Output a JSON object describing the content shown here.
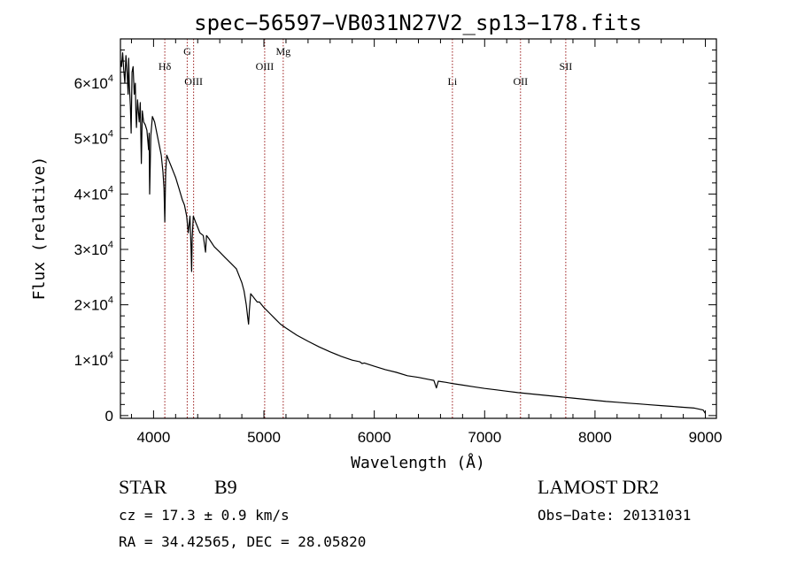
{
  "chart_data": {
    "type": "line",
    "title": "spec−56597−VB031N27V2_sp13−178.fits",
    "xlabel": "Wavelength (Å)",
    "ylabel": "Flux (relative)",
    "xlim": [
      3700,
      9100
    ],
    "ylim": [
      -500,
      68000
    ],
    "x_ticks": [
      {
        "value": 4000,
        "label": "4000"
      },
      {
        "value": 5000,
        "label": "5000"
      },
      {
        "value": 6000,
        "label": "6000"
      },
      {
        "value": 7000,
        "label": "7000"
      },
      {
        "value": 8000,
        "label": "8000"
      },
      {
        "value": 9000,
        "label": "9000"
      }
    ],
    "y_ticks": [
      {
        "value": 0,
        "label": "0",
        "mant": "",
        "exp": ""
      },
      {
        "value": 10000,
        "label": "",
        "mant": "1×10",
        "exp": "4"
      },
      {
        "value": 20000,
        "label": "",
        "mant": "2×10",
        "exp": "4"
      },
      {
        "value": 30000,
        "label": "",
        "mant": "3×10",
        "exp": "4"
      },
      {
        "value": 40000,
        "label": "",
        "mant": "4×10",
        "exp": "4"
      },
      {
        "value": 50000,
        "label": "",
        "mant": "5×10",
        "exp": "4"
      },
      {
        "value": 60000,
        "label": "",
        "mant": "6×10",
        "exp": "4"
      }
    ],
    "line_markers": [
      {
        "label": "Hδ",
        "x": 4102,
        "row": "upper"
      },
      {
        "label": "G",
        "x": 4305,
        "row": "top"
      },
      {
        "label": "OIII",
        "x": 4363,
        "row": "lower"
      },
      {
        "label": "OIII",
        "x": 5007,
        "row": "upper"
      },
      {
        "label": "Mg",
        "x": 5175,
        "row": "top"
      },
      {
        "label": "Li",
        "x": 6708,
        "row": "lower"
      },
      {
        "label": "OII",
        "x": 7325,
        "row": "lower"
      },
      {
        "label": "SII",
        "x": 7735,
        "row": "upper"
      }
    ],
    "series": [
      {
        "x": [
          3700,
          3710,
          3720,
          3730,
          3740,
          3750,
          3760,
          3770,
          3775,
          3780,
          3790,
          3797,
          3805,
          3815,
          3825,
          3835,
          3840,
          3845,
          3855,
          3870,
          3880,
          3889,
          3898,
          3910,
          3925,
          3940,
          3955,
          3960,
          3965,
          3975,
          3990,
          4010,
          4030,
          4050,
          4070,
          4085,
          4095,
          4102,
          4110,
          4120,
          4140,
          4160,
          4180,
          4200,
          4230,
          4260,
          4280,
          4300,
          4315,
          4330,
          4340,
          4345,
          4350,
          4360,
          4380,
          4400,
          4420,
          4450,
          4471,
          4480,
          4500,
          4550,
          4600,
          4650,
          4700,
          4750,
          4780,
          4800,
          4820,
          4840,
          4855,
          4861,
          4868,
          4880,
          4900,
          4920,
          4940,
          4960,
          4980,
          5000,
          5050,
          5100,
          5150,
          5200,
          5300,
          5400,
          5500,
          5600,
          5700,
          5800,
          5870,
          5890,
          5910,
          6000,
          6100,
          6200,
          6300,
          6400,
          6500,
          6540,
          6563,
          6580,
          6650,
          6700,
          6800,
          6900,
          7000,
          7100,
          7200,
          7300,
          7400,
          7500,
          7600,
          7700,
          7800,
          7900,
          8000,
          8100,
          8200,
          8300,
          8400,
          8500,
          8600,
          8700,
          8800,
          8900,
          8980,
          9000
        ],
        "y": [
          64000,
          63000,
          65500,
          62500,
          60000,
          65000,
          62000,
          58000,
          64500,
          60000,
          56000,
          51000,
          62000,
          63000,
          58000,
          60000,
          55000,
          52000,
          57000,
          53000,
          56500,
          45500,
          55000,
          53000,
          52500,
          51500,
          48000,
          51000,
          40000,
          50500,
          54000,
          53000,
          51000,
          49000,
          47000,
          44000,
          41000,
          35000,
          44000,
          47000,
          46000,
          45000,
          44000,
          43000,
          41000,
          39000,
          38000,
          36000,
          33000,
          36000,
          30000,
          26000,
          32000,
          36000,
          35000,
          34000,
          33000,
          32500,
          29500,
          32500,
          32000,
          30500,
          29500,
          28500,
          27500,
          26500,
          25000,
          24000,
          22500,
          20000,
          17500,
          16500,
          19000,
          22000,
          21500,
          21000,
          20500,
          20500,
          20000,
          19500,
          18500,
          17500,
          16500,
          15800,
          14500,
          13400,
          12400,
          11500,
          10700,
          10000,
          9700,
          9400,
          9500,
          8900,
          8300,
          7800,
          7200,
          6900,
          6500,
          6350,
          5000,
          6200,
          6000,
          5800,
          5500,
          5200,
          4900,
          4650,
          4400,
          4150,
          3950,
          3750,
          3550,
          3350,
          3150,
          2950,
          2750,
          2550,
          2400,
          2250,
          2100,
          1950,
          1800,
          1650,
          1500,
          1350,
          1000,
          400
        ]
      }
    ]
  },
  "footer": {
    "object_class": "STAR",
    "subclass": "B9",
    "survey": "LAMOST DR2",
    "cz": "cz = 17.3 ± 0.9 km/s",
    "obs_date": "Obs−Date: 20131031",
    "coords": "RA =  34.42565, DEC =  28.05820"
  }
}
